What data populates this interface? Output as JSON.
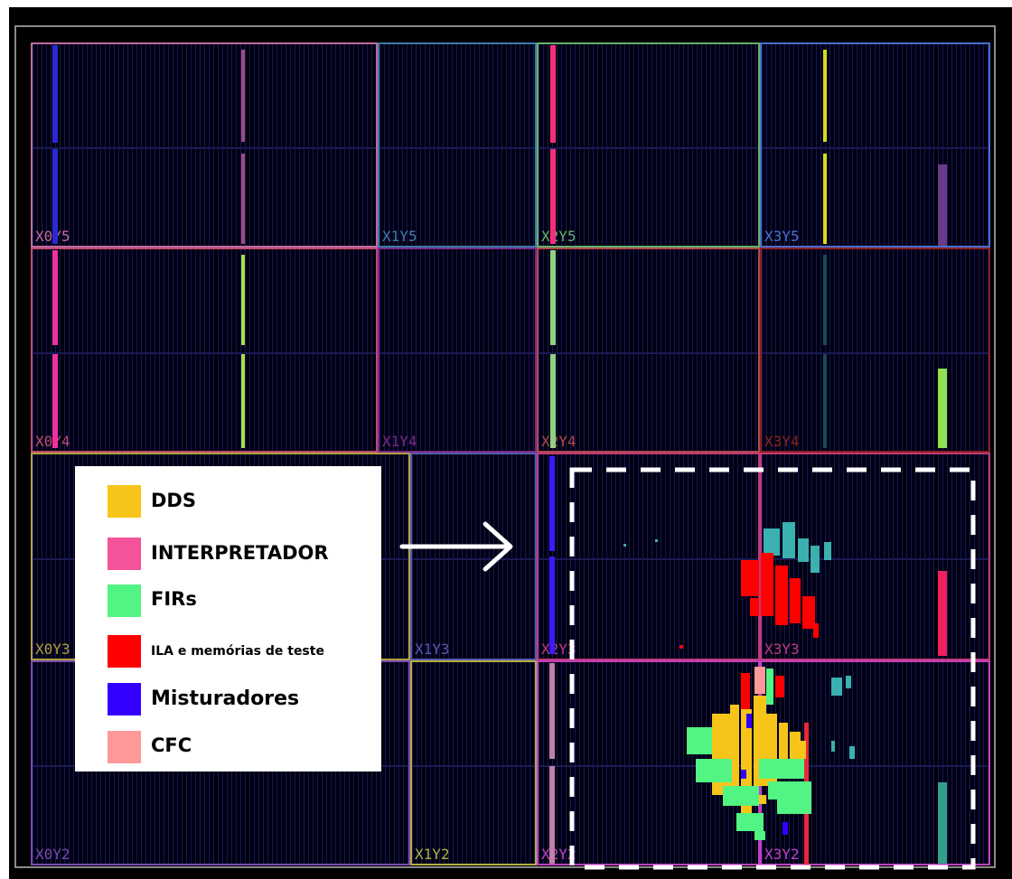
{
  "device": {
    "regions": [
      {
        "id": "X0Y5",
        "label": "X0Y5",
        "color": "#c06aa0"
      },
      {
        "id": "X1Y5",
        "label": "X1Y5",
        "color": "#3f7ba8"
      },
      {
        "id": "X2Y5",
        "label": "X2Y5",
        "color": "#68b06a"
      },
      {
        "id": "X3Y5",
        "label": "X3Y5",
        "color": "#4a6fd0"
      },
      {
        "id": "X0Y4",
        "label": "X0Y4",
        "color": "#c04a6e"
      },
      {
        "id": "X1Y4",
        "label": "X1Y4",
        "color": "#7a2a8a"
      },
      {
        "id": "X2Y4",
        "label": "X2Y4",
        "color": "#b04a4a"
      },
      {
        "id": "X3Y4",
        "label": "X3Y4",
        "color": "#8a2020"
      },
      {
        "id": "X0Y3",
        "label": "X0Y3",
        "color": "#b0a040"
      },
      {
        "id": "X1Y3",
        "label": "X1Y3",
        "color": "#5a5ab0"
      },
      {
        "id": "X2Y3",
        "label": "X2Y3",
        "color": "#c03a7a"
      },
      {
        "id": "X3Y3",
        "label": "X3Y3",
        "color": "#c03a7a"
      },
      {
        "id": "X0Y2",
        "label": "X0Y2",
        "color": "#7a4ab0"
      },
      {
        "id": "X1Y2",
        "label": "X1Y2",
        "color": "#b0b040"
      },
      {
        "id": "X2Y2",
        "label": "X2Y2",
        "color": "#c040c0"
      },
      {
        "id": "X3Y2",
        "label": "X3Y2",
        "color": "#c040c0"
      }
    ]
  },
  "legend": {
    "items": [
      {
        "key": "dds",
        "label": "DDS",
        "color": "#f7c519"
      },
      {
        "key": "interpretador",
        "label": "INTERPRETADOR",
        "color": "#f45299"
      },
      {
        "key": "firs",
        "label": "FIRs",
        "color": "#52f483"
      },
      {
        "key": "ila",
        "label": "ILA e memórias de teste",
        "color": "#ff0000"
      },
      {
        "key": "misturadores",
        "label": "Misturadores",
        "color": "#3300ff"
      },
      {
        "key": "cfc",
        "label": "CFC",
        "color": "#ff9999"
      }
    ]
  },
  "annotations": {
    "arrow_icon": "right-arrow-icon",
    "arrow_color": "#ffffff",
    "highlight_color": "#ffffff"
  }
}
